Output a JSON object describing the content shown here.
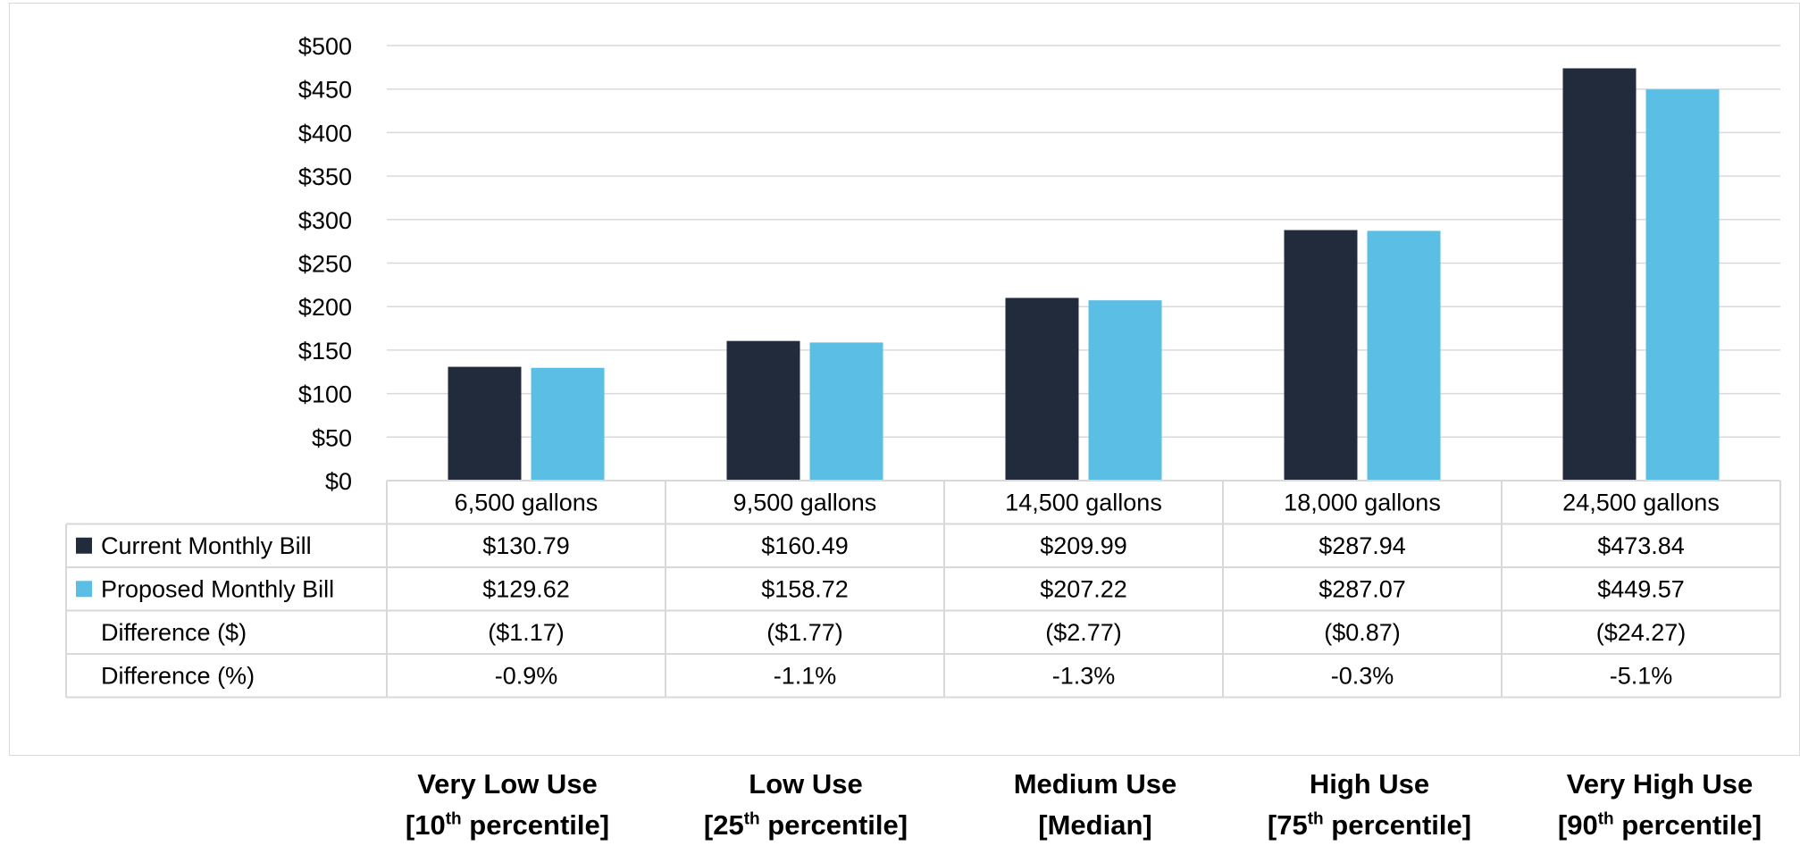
{
  "colors": {
    "current": "#222b3c",
    "proposed": "#5bbee5",
    "gridline": "#d9d9d9",
    "table_border": "#d9d9d9"
  },
  "chart_data": {
    "type": "bar",
    "categories": [
      "6,500 gallons",
      "9,500 gallons",
      "14,500 gallons",
      "18,000 gallons",
      "24,500 gallons"
    ],
    "series": [
      {
        "name": "Current Monthly Bill",
        "values": [
          130.79,
          160.49,
          209.99,
          287.94,
          473.84
        ]
      },
      {
        "name": "Proposed Monthly Bill",
        "values": [
          129.62,
          158.72,
          207.22,
          287.07,
          449.57
        ]
      }
    ],
    "yticks": [
      "$0",
      "$50",
      "$100",
      "$150",
      "$200",
      "$250",
      "$300",
      "$350",
      "$400",
      "$450",
      "$500"
    ],
    "ylim": [
      0,
      500
    ],
    "grid": true,
    "legend": "data table",
    "data_table": {
      "rows": [
        {
          "label": "Current Monthly Bill",
          "key": "current",
          "cells": [
            "$130.79",
            "$160.49",
            "$209.99",
            "$287.94",
            "$473.84"
          ]
        },
        {
          "label": "Proposed Monthly Bill",
          "key": "proposed",
          "cells": [
            "$129.62",
            "$158.72",
            "$207.22",
            "$287.07",
            "$449.57"
          ]
        },
        {
          "label": "Difference ($)",
          "key": "",
          "cells": [
            "($1.17)",
            "($1.77)",
            "($2.77)",
            "($0.87)",
            "($24.27)"
          ]
        },
        {
          "label": "Difference (%)",
          "key": "",
          "cells": [
            "-0.9%",
            "-1.1%",
            "-1.3%",
            "-0.3%",
            "-5.1%"
          ]
        }
      ]
    }
  },
  "usage_labels": [
    {
      "line1": "Very Low Use",
      "pre": "[10",
      "sup": "th",
      "post": " percentile]"
    },
    {
      "line1": "Low Use",
      "pre": "[25",
      "sup": "th",
      "post": " percentile]"
    },
    {
      "line1": "Medium Use",
      "pre": "[Median]",
      "sup": "",
      "post": ""
    },
    {
      "line1": "High Use",
      "pre": "[75",
      "sup": "th",
      "post": " percentile]"
    },
    {
      "line1": "Very High Use",
      "pre": "[90",
      "sup": "th",
      "post": " percentile]"
    }
  ]
}
